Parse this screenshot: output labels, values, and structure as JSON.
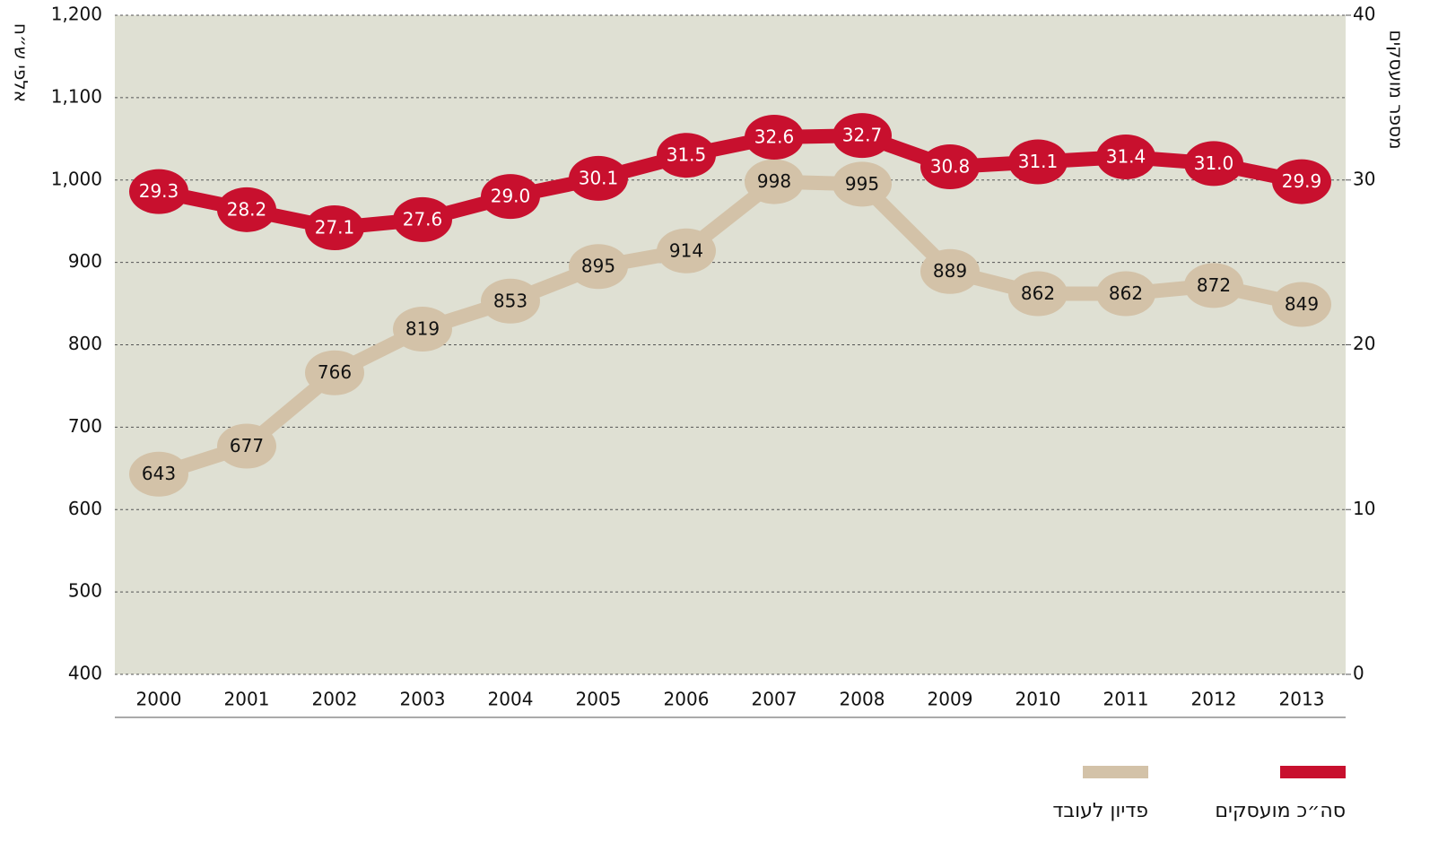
{
  "chart_data": {
    "type": "line",
    "y_label": "אלפי ש״ח",
    "y2_label": "מספר מועסקים",
    "categories": [
      "2000",
      "2001",
      "2002",
      "2003",
      "2004",
      "2005",
      "2006",
      "2007",
      "2008",
      "2009",
      "2010",
      "2011",
      "2012",
      "2013"
    ],
    "series": [
      {
        "name": "סה״כ מועסקים",
        "color": "#c8102e",
        "axis": "y2",
        "values": [
          29.3,
          28.2,
          27.1,
          27.6,
          29.0,
          30.1,
          31.5,
          32.6,
          32.7,
          30.8,
          31.1,
          31.4,
          31.0,
          29.9
        ],
        "value_labels": [
          "29.3",
          "28.2",
          "27.1",
          "27.6",
          "29.0",
          "30.1",
          "31.5",
          "32.6",
          "32.7",
          "30.8",
          "31.1",
          "31.4",
          "31.0",
          "29.9"
        ]
      },
      {
        "name": "פדיון לעובד",
        "color": "#d3c2a8",
        "values": [
          643,
          677,
          766,
          819,
          853,
          895,
          914,
          998,
          995,
          889,
          862,
          862,
          872,
          849
        ]
      }
    ],
    "ylim": [
      400,
      1200
    ],
    "yticks": [
      400,
      500,
      600,
      700,
      800,
      900,
      {
        "value": 1000,
        "label": "1,000"
      },
      {
        "value": 1100,
        "label": "1,100"
      },
      {
        "value": 1200,
        "label": "1,200"
      }
    ],
    "y2lim": [
      0,
      40
    ],
    "y2ticks": [
      0,
      10,
      20,
      30,
      40
    ],
    "grid": true
  }
}
